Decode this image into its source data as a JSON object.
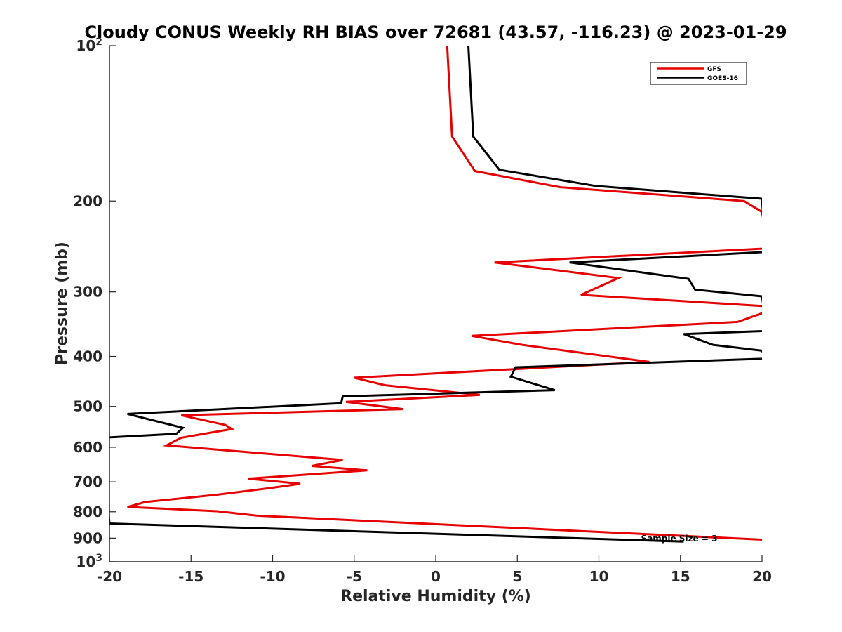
{
  "chart_data": {
    "type": "line",
    "title": "Cloudy CONUS Weekly RH BIAS over 72681 (43.57, -116.23) @ 2023-01-29",
    "xlabel": "Relative Humidity (%)",
    "ylabel": "Pressure (mb)",
    "xlim": [
      -20,
      20
    ],
    "ylim": [
      1000,
      100
    ],
    "yscale": "log",
    "y_reversed": true,
    "grid": false,
    "legend_position": "top-right",
    "x_ticks": [
      "-20",
      "-15",
      "-10",
      "-5",
      "0",
      "5",
      "10",
      "15",
      "20"
    ],
    "x_tick_values": [
      -20,
      -15,
      -10,
      -5,
      0,
      5,
      10,
      15,
      20
    ],
    "y_ticks": [
      {
        "value": 100,
        "base": "10",
        "exp": "2"
      },
      {
        "value": 200,
        "label": "200"
      },
      {
        "value": 300,
        "label": "300"
      },
      {
        "value": 400,
        "label": "400"
      },
      {
        "value": 500,
        "label": "500"
      },
      {
        "value": 600,
        "label": "600"
      },
      {
        "value": 700,
        "label": "700"
      },
      {
        "value": 800,
        "label": "800"
      },
      {
        "value": 900,
        "label": "900"
      },
      {
        "value": 1000,
        "base": "10",
        "exp": "3"
      }
    ],
    "annotation": "Sample Size = 3",
    "series": [
      {
        "name": "GFS",
        "color": "#e60000",
        "points": [
          [
            0.7,
            100
          ],
          [
            1.0,
            150
          ],
          [
            2.4,
            175
          ],
          [
            7.6,
            188
          ],
          [
            18.9,
            200
          ],
          [
            20.0,
            210
          ],
          [
            20.4,
            247
          ],
          [
            3.6,
            263
          ],
          [
            11.2,
            282
          ],
          [
            8.9,
            304
          ],
          [
            20.4,
            320
          ],
          [
            20.0,
            330
          ],
          [
            18.5,
            343
          ],
          [
            2.2,
            365
          ],
          [
            5.3,
            380
          ],
          [
            13.1,
            410
          ],
          [
            -5.0,
            440
          ],
          [
            -3.1,
            455
          ],
          [
            2.7,
            475
          ],
          [
            -5.5,
            490
          ],
          [
            -2.0,
            506
          ],
          [
            -15.6,
            520
          ],
          [
            -12.9,
            543
          ],
          [
            -12.5,
            553
          ],
          [
            -15.6,
            575
          ],
          [
            -16.5,
            595
          ],
          [
            -5.7,
            635
          ],
          [
            -7.6,
            652
          ],
          [
            -4.2,
            665
          ],
          [
            -11.5,
            690
          ],
          [
            -8.3,
            706
          ],
          [
            -10.2,
            720
          ],
          [
            -13.5,
            742
          ],
          [
            -17.8,
            766
          ],
          [
            -18.9,
            783
          ],
          [
            -13.4,
            798
          ],
          [
            -11.0,
            814
          ],
          [
            20.0,
            906
          ]
        ]
      },
      {
        "name": "GOES-16",
        "color": "#000000",
        "points": [
          [
            2.0,
            100
          ],
          [
            2.3,
            150
          ],
          [
            3.9,
            174
          ],
          [
            9.8,
            187
          ],
          [
            20.0,
            198
          ],
          [
            20.2,
            251
          ],
          [
            8.2,
            263
          ],
          [
            15.5,
            283
          ],
          [
            15.9,
            297
          ],
          [
            20.0,
            306
          ],
          [
            20.3,
            357
          ],
          [
            15.2,
            362
          ],
          [
            17.0,
            380
          ],
          [
            20.0,
            390
          ],
          [
            20.2,
            404
          ],
          [
            4.9,
            420
          ],
          [
            4.6,
            438
          ],
          [
            7.3,
            465
          ],
          [
            -5.7,
            478
          ],
          [
            -5.8,
            493
          ],
          [
            -18.9,
            517
          ],
          [
            -15.5,
            550
          ],
          [
            -15.9,
            565
          ],
          [
            -20.4,
            575
          ],
          [
            -20.0,
            843
          ],
          [
            15.2,
            914
          ]
        ]
      }
    ]
  }
}
